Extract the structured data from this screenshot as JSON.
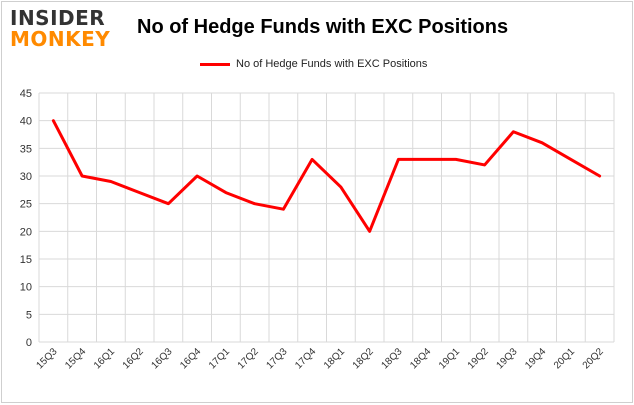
{
  "logo": {
    "line1": "INSIDER",
    "line2": "MONKEY"
  },
  "chart_data": {
    "type": "line",
    "title": "No of Hedge Funds with EXC Positions",
    "xlabel": "",
    "ylabel": "",
    "ylim": [
      0,
      45
    ],
    "yticks": [
      0,
      5,
      10,
      15,
      20,
      25,
      30,
      35,
      40,
      45
    ],
    "grid": true,
    "legend_position": "top-center",
    "categories": [
      "15Q3",
      "15Q4",
      "16Q1",
      "16Q2",
      "16Q3",
      "16Q4",
      "17Q1",
      "17Q2",
      "17Q3",
      "17Q4",
      "18Q1",
      "18Q2",
      "18Q3",
      "18Q4",
      "19Q1",
      "19Q2",
      "19Q3",
      "19Q4",
      "20Q1",
      "20Q2"
    ],
    "series": [
      {
        "name": "No of Hedge Funds with EXC Positions",
        "color": "#ff0000",
        "values": [
          40,
          30,
          29,
          27,
          25,
          30,
          27,
          25,
          24,
          33,
          28,
          20,
          33,
          33,
          33,
          32,
          38,
          36,
          33,
          30
        ]
      }
    ]
  }
}
